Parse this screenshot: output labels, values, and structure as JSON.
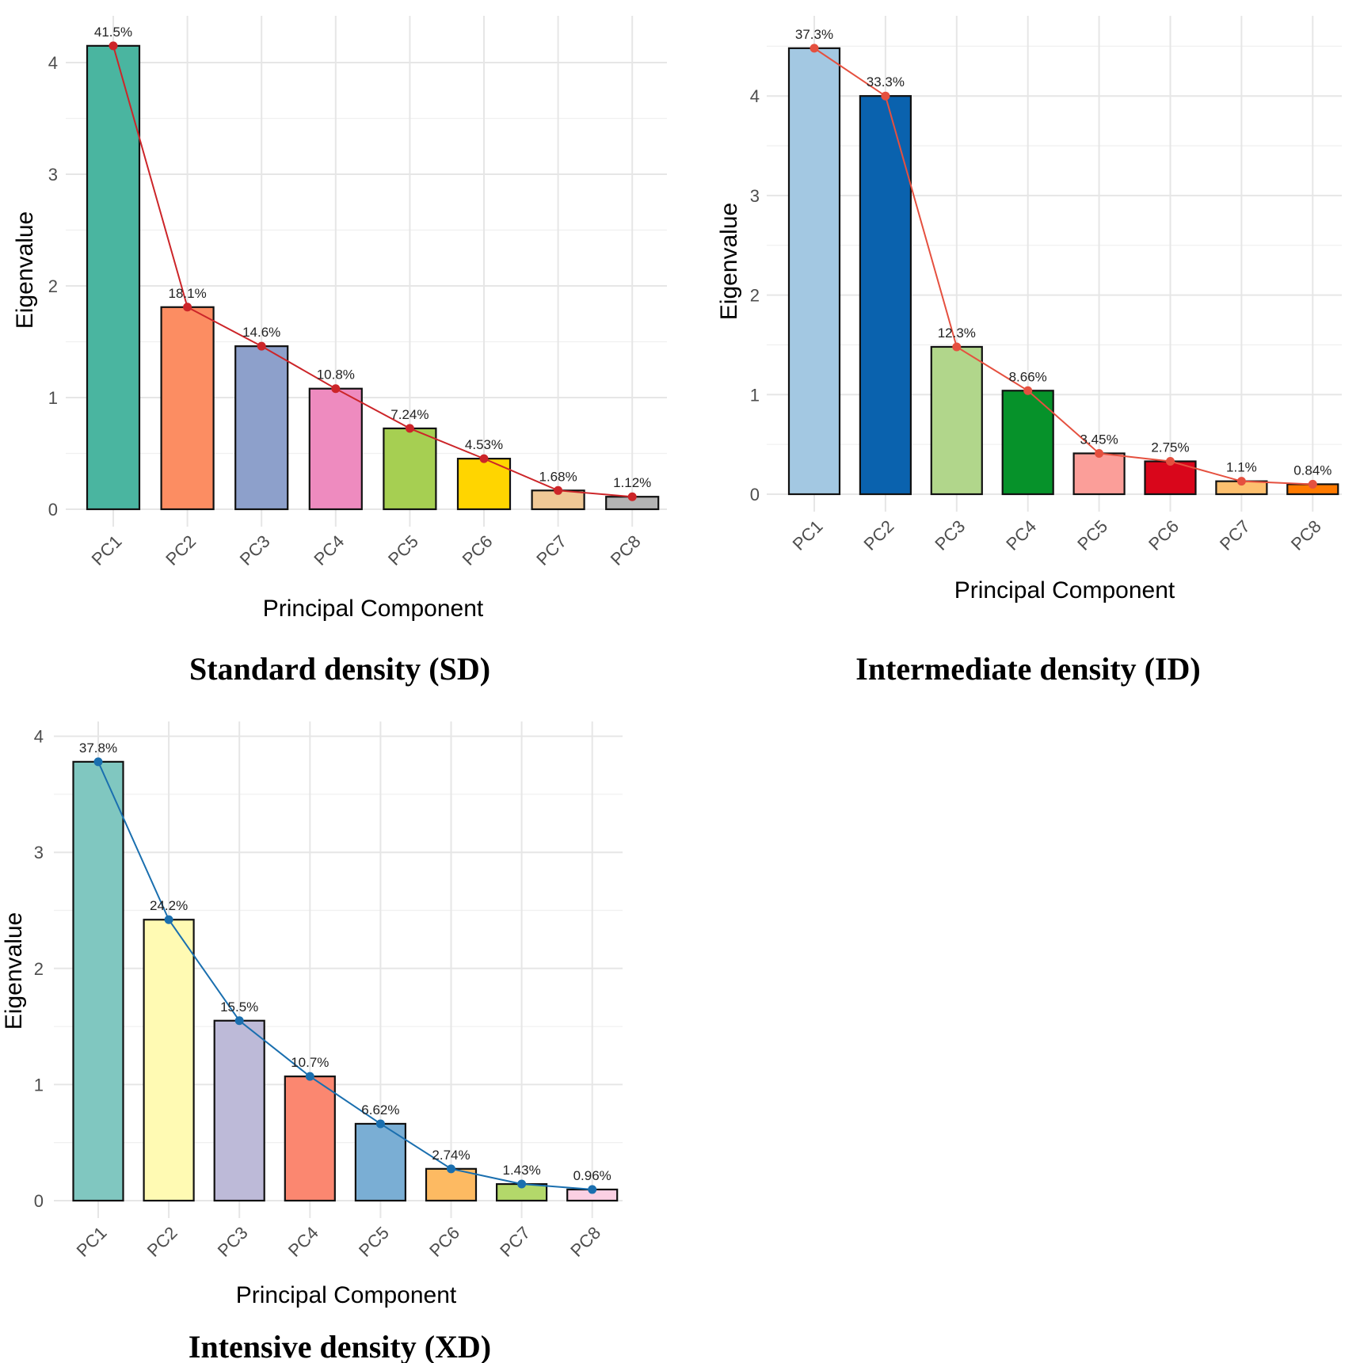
{
  "chart_data": [
    {
      "type": "bar",
      "title": "Standard density (SD)",
      "xlabel": "Principal Component",
      "ylabel": "Eigenvalue",
      "categories": [
        "PC1",
        "PC2",
        "PC3",
        "PC4",
        "PC5",
        "PC6",
        "PC7",
        "PC8"
      ],
      "values": [
        4.15,
        1.81,
        1.46,
        1.08,
        0.724,
        0.453,
        0.168,
        0.112
      ],
      "pct_labels": [
        "41.5%",
        "18.1%",
        "14.6%",
        "10.8%",
        "7.24%",
        "4.53%",
        "1.68%",
        "1.12%"
      ],
      "yticks": [
        "0",
        "1",
        "2",
        "3",
        "4"
      ],
      "ylim": [
        0,
        4.4
      ],
      "colors": [
        "#4ab5a0",
        "#fc8d62",
        "#8da0cb",
        "#ee8bbf",
        "#a6cf52",
        "#ffd500",
        "#efc896",
        "#b3b3b3"
      ],
      "line_color": "#cc2529",
      "grid": true
    },
    {
      "type": "bar",
      "title": "Intermediate density (ID)",
      "xlabel": "Principal Component",
      "ylabel": "Eigenvalue",
      "categories": [
        "PC1",
        "PC2",
        "PC3",
        "PC4",
        "PC5",
        "PC6",
        "PC7",
        "PC8"
      ],
      "values": [
        4.48,
        4.0,
        1.48,
        1.04,
        0.41,
        0.33,
        0.13,
        0.1
      ],
      "pct_labels": [
        "37.3%",
        "33.3%",
        "12.3%",
        "8.66%",
        "3.45%",
        "2.75%",
        "1.1%",
        "0.84%"
      ],
      "yticks": [
        "0",
        "1",
        "2",
        "3",
        "4"
      ],
      "ylim": [
        0,
        4.9
      ],
      "colors": [
        "#a3c8e2",
        "#0a62ae",
        "#b1d68b",
        "#06922a",
        "#fb9e99",
        "#d9061b",
        "#fdc06f",
        "#ff7a00"
      ],
      "line_color": "#e5503f",
      "grid": true
    },
    {
      "type": "bar",
      "title": "Intensive density (XD)",
      "xlabel": "Principal Component",
      "ylabel": "Eigenvalue",
      "categories": [
        "PC1",
        "PC2",
        "PC3",
        "PC4",
        "PC5",
        "PC6",
        "PC7",
        "PC8"
      ],
      "values": [
        3.78,
        2.42,
        1.55,
        1.07,
        0.662,
        0.274,
        0.143,
        0.096
      ],
      "pct_labels": [
        "37.8%",
        "24.2%",
        "15.5%",
        "10.7%",
        "6.62%",
        "2.74%",
        "1.43%",
        "0.96%"
      ],
      "yticks": [
        "0",
        "1",
        "2",
        "3",
        "4"
      ],
      "ylim": [
        0,
        4.1
      ],
      "colors": [
        "#80c7c0",
        "#fffab3",
        "#bdbad8",
        "#fb8770",
        "#7aaed4",
        "#fdba62",
        "#b3d86a",
        "#fbd0e3"
      ],
      "line_color": "#1a6faf",
      "grid": true
    }
  ]
}
